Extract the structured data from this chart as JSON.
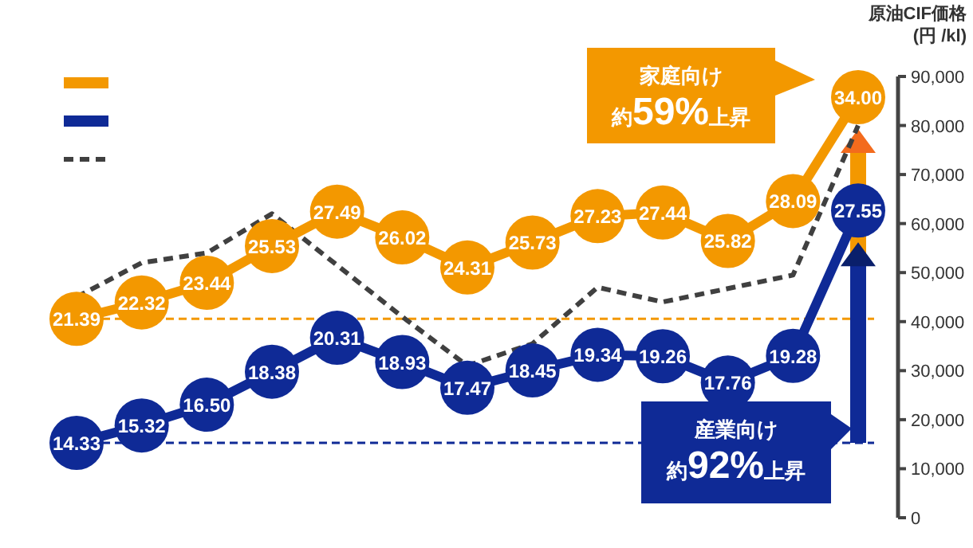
{
  "chart_data": {
    "type": "line",
    "categories": [
      null,
      null,
      null,
      null,
      null,
      null,
      null,
      null,
      null,
      null,
      null,
      null,
      null
    ],
    "series": [
      {
        "color": "#f39800",
        "axis": "y2",
        "values": [
          21.39,
          22.32,
          23.44,
          25.53,
          27.49,
          26.02,
          24.31,
          25.73,
          27.23,
          27.44,
          25.82,
          28.09,
          34.0
        ],
        "value_labels": [
          "21.39",
          "22.32",
          "23.44",
          "25.53",
          "27.49",
          "26.02",
          "24.31",
          "25.73",
          "27.23",
          "27.44",
          "25.82",
          "28.09",
          "34.00"
        ]
      },
      {
        "color": "#0f2a96",
        "axis": "y2",
        "values": [
          14.33,
          15.32,
          16.5,
          18.38,
          20.31,
          18.93,
          17.47,
          18.45,
          19.34,
          19.26,
          17.76,
          19.28,
          27.55
        ],
        "value_labels": [
          "14.33",
          "15.32",
          "16.50",
          "18.38",
          "20.31",
          "18.93",
          "17.47",
          "18.45",
          "19.34",
          "19.26",
          "17.76",
          "19.28",
          "27.55"
        ]
      },
      {
        "color": "#404040",
        "line_style": "dashed",
        "marker": "none",
        "values": [
          45000,
          52000,
          54000,
          62000,
          null,
          41000,
          31000,
          35500,
          47000,
          44000,
          null,
          49500,
          80000
        ]
      }
    ],
    "ylabel": "原油CIF価格\n(円 /kl)",
    "ylim": [
      0,
      90000
    ],
    "yticks": [
      0,
      {
        "value": 10000,
        "label": "10,000"
      },
      {
        "value": 20000,
        "label": "20,000"
      },
      {
        "value": 30000,
        "label": "30,000"
      },
      {
        "value": 40000,
        "label": "40,000"
      },
      {
        "value": 50000,
        "label": "50,000"
      },
      {
        "value": 60000,
        "label": "60,000"
      },
      {
        "value": 70000,
        "label": "70,000"
      },
      {
        "value": 80000,
        "label": "80,000"
      },
      {
        "value": 90000,
        "label": "90,000"
      }
    ],
    "ref_lines": [
      {
        "axis": "y2",
        "value": 21.39,
        "color": "#f39800",
        "line_style": "dashed"
      },
      {
        "axis": "y2",
        "value": 14.33,
        "color": "#0f2a96",
        "line_style": "dashed"
      }
    ],
    "annotations": [
      "家庭向け",
      "約**59%**上昇",
      "産業向け",
      "約**92%**上昇"
    ],
    "marker": "circle",
    "line_style": "solid"
  }
}
